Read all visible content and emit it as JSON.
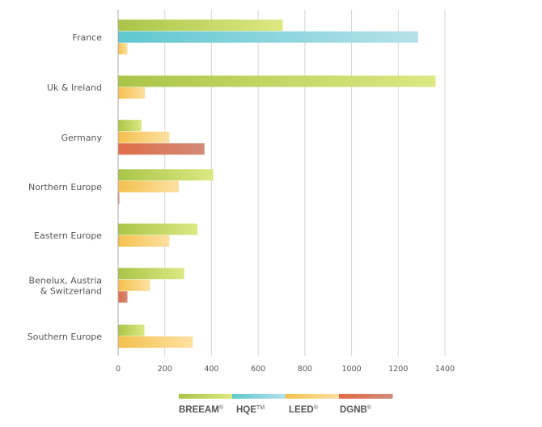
{
  "chart_data": {
    "type": "bar",
    "orientation": "horizontal",
    "title": "",
    "xlabel": "",
    "ylabel": "",
    "xlim": [
      0,
      1400
    ],
    "xticks": [
      0,
      200,
      400,
      600,
      800,
      1000,
      1200,
      1400
    ],
    "tick_labels": [
      "0",
      "200",
      "400",
      "600",
      "800",
      "1000",
      "1200",
      "1400"
    ],
    "grid": "vertical",
    "legend_position": "bottom",
    "categories": [
      {
        "lines": [
          "France"
        ]
      },
      {
        "lines": [
          "Uk & Ireland"
        ]
      },
      {
        "lines": [
          "Germany"
        ]
      },
      {
        "lines": [
          "Northern Europe"
        ]
      },
      {
        "lines": [
          "Eastern Europe"
        ]
      },
      {
        "lines": [
          "Benelux, Austria",
          "& Switzerland"
        ]
      },
      {
        "lines": [
          "Southern Europe"
        ]
      }
    ],
    "series": [
      {
        "key": "breeam",
        "name": "BREEAM",
        "mark": "®",
        "color_dark": "#a9c548",
        "color_light": "#dde882",
        "values": [
          705,
          1360,
          100,
          408,
          340,
          283,
          113
        ]
      },
      {
        "key": "hqe",
        "name": "HQE",
        "mark": "TM",
        "color_dark": "#5fc7cf",
        "color_light": "#b6e1ea",
        "values": [
          1285,
          null,
          null,
          null,
          null,
          null,
          null
        ]
      },
      {
        "key": "leed",
        "name": "LEED",
        "mark": "®",
        "color_dark": "#f4c04e",
        "color_light": "#fde1a2",
        "values": [
          40,
          115,
          220,
          260,
          220,
          137,
          320
        ]
      },
      {
        "key": "dgnb",
        "name": "DGNB",
        "mark": "®",
        "color_dark": "#e06c48",
        "color_light": "#d28a78",
        "values": [
          null,
          null,
          370,
          5,
          null,
          40,
          null
        ]
      }
    ]
  }
}
